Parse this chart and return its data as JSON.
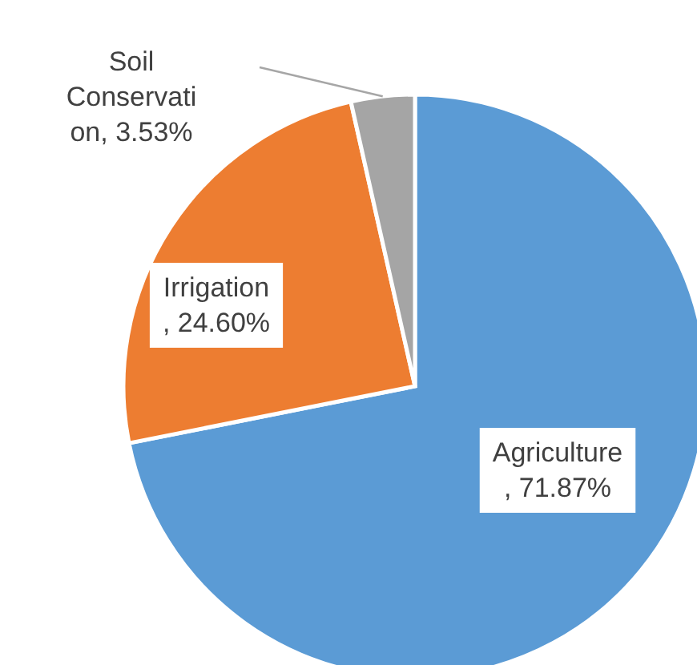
{
  "chart_data": {
    "type": "pie",
    "categories": [
      "Agriculture",
      "Irrigation",
      "Soil Conservation"
    ],
    "values": [
      71.87,
      24.6,
      3.53
    ],
    "colors": [
      "#5b9bd5",
      "#ed7d31",
      "#a5a5a5"
    ],
    "value_labels": [
      ", 71.87%",
      ", 24.60%",
      ", 3.53%"
    ]
  }
}
